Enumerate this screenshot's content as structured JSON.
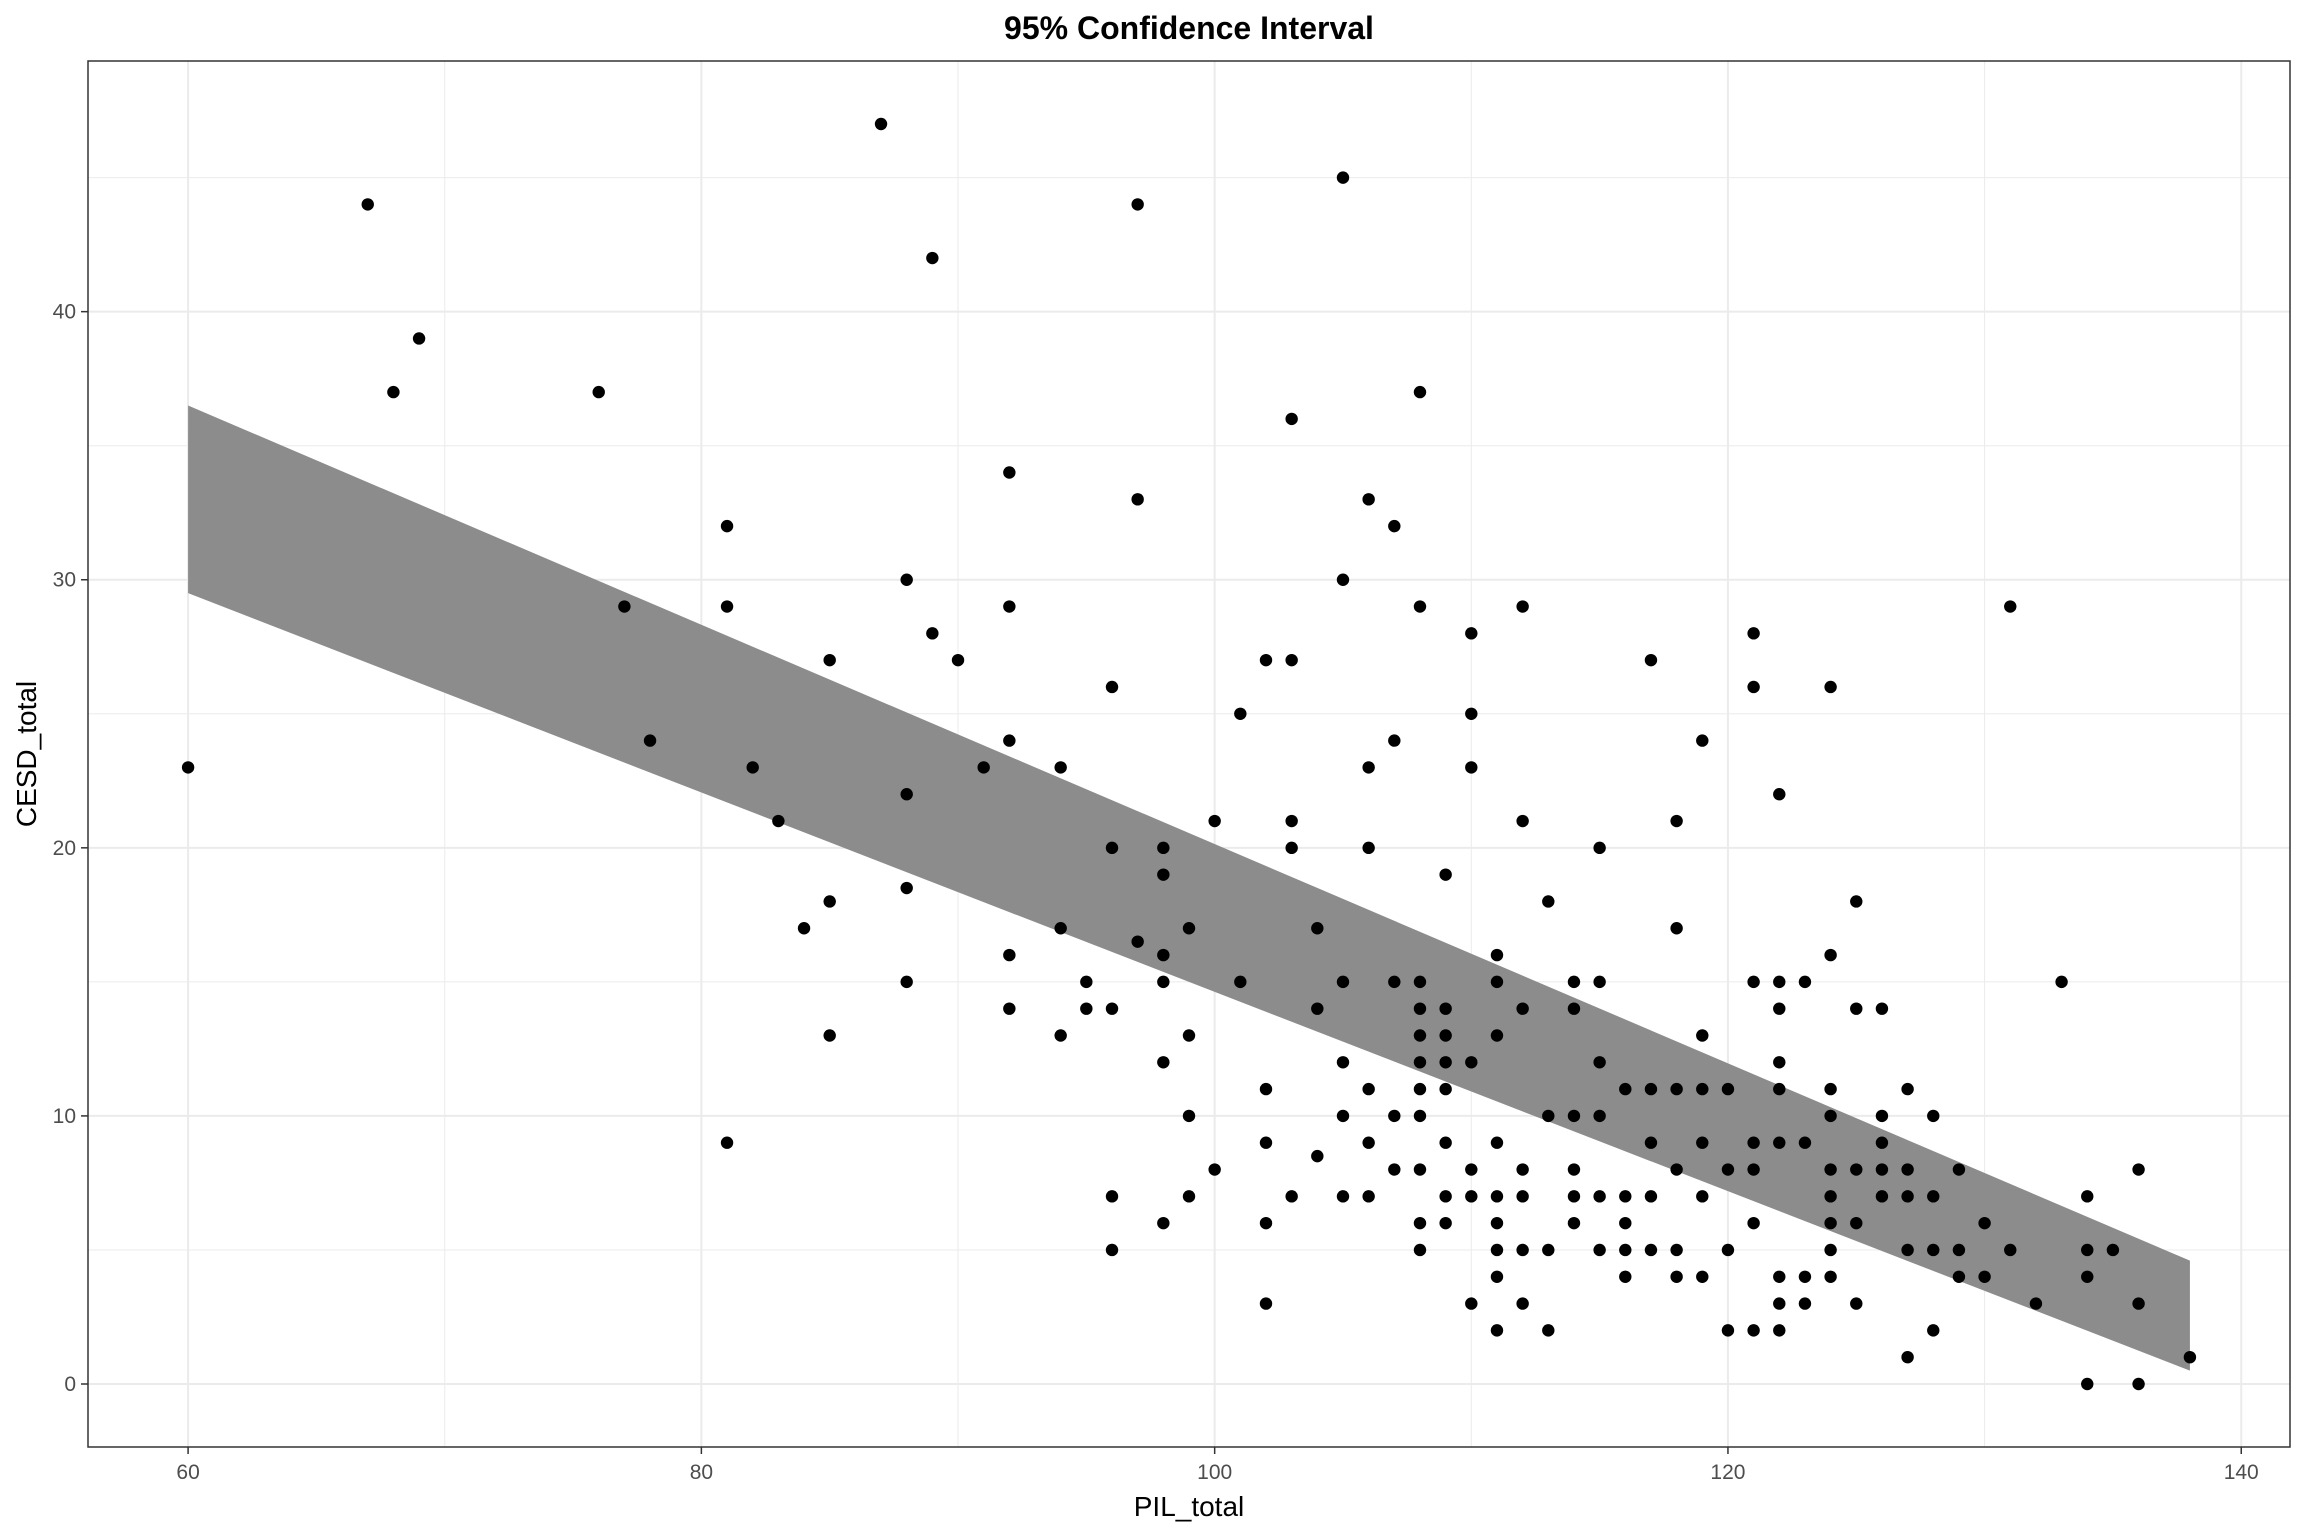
{
  "chart_data": {
    "type": "scatter",
    "title": "95% Confidence Interval",
    "xlabel": "PIL_total",
    "ylabel": "CESD_total",
    "xlim": [
      56.1,
      141.9
    ],
    "ylim": [
      -2.35,
      49.35
    ],
    "xticks": [
      60,
      80,
      100,
      120,
      140
    ],
    "yticks": [
      0,
      10,
      20,
      30,
      40
    ],
    "grid": true,
    "legend": "none",
    "colors": {
      "points": "#000000",
      "ribbon": "#8c8c8c",
      "grid": "#ebebeb",
      "border": "#333333"
    },
    "ribbon": {
      "x": [
        60,
        138
      ],
      "lower": [
        29.5,
        0.5
      ],
      "upper": [
        36.5,
        4.6
      ]
    },
    "points": [
      [
        60,
        23
      ],
      [
        67,
        44
      ],
      [
        68,
        37
      ],
      [
        69,
        39
      ],
      [
        76,
        37
      ],
      [
        77,
        29
      ],
      [
        78,
        24
      ],
      [
        81,
        32
      ],
      [
        81,
        29
      ],
      [
        81,
        9
      ],
      [
        82,
        23
      ],
      [
        83,
        21
      ],
      [
        84,
        17
      ],
      [
        85,
        27
      ],
      [
        85,
        18
      ],
      [
        85,
        13
      ],
      [
        87,
        47
      ],
      [
        88,
        30
      ],
      [
        88,
        22
      ],
      [
        88,
        18.5
      ],
      [
        88,
        15
      ],
      [
        89,
        42
      ],
      [
        89,
        28
      ],
      [
        90,
        27
      ],
      [
        91,
        23
      ],
      [
        92,
        34
      ],
      [
        92,
        29
      ],
      [
        92,
        24
      ],
      [
        92,
        16
      ],
      [
        92,
        14
      ],
      [
        94,
        23
      ],
      [
        94,
        17
      ],
      [
        94,
        13
      ],
      [
        95,
        15
      ],
      [
        95,
        14
      ],
      [
        96,
        26
      ],
      [
        96,
        20
      ],
      [
        96,
        14
      ],
      [
        96,
        7
      ],
      [
        96,
        5
      ],
      [
        97,
        44
      ],
      [
        97,
        33
      ],
      [
        97,
        16.5
      ],
      [
        98,
        20
      ],
      [
        98,
        19
      ],
      [
        98,
        16
      ],
      [
        98,
        15
      ],
      [
        98,
        12
      ],
      [
        98,
        6
      ],
      [
        99,
        17
      ],
      [
        99,
        13
      ],
      [
        99,
        10
      ],
      [
        99,
        7
      ],
      [
        100,
        21
      ],
      [
        100,
        8
      ],
      [
        101,
        25
      ],
      [
        101,
        15
      ],
      [
        102,
        27
      ],
      [
        102,
        11
      ],
      [
        102,
        9
      ],
      [
        102,
        6
      ],
      [
        102,
        3
      ],
      [
        103,
        36
      ],
      [
        103,
        27
      ],
      [
        103,
        21
      ],
      [
        103,
        20
      ],
      [
        103,
        7
      ],
      [
        104,
        17
      ],
      [
        104,
        14
      ],
      [
        104,
        8.5
      ],
      [
        105,
        45
      ],
      [
        105,
        30
      ],
      [
        105,
        15
      ],
      [
        105,
        12
      ],
      [
        105,
        10
      ],
      [
        105,
        7
      ],
      [
        106,
        33
      ],
      [
        106,
        23
      ],
      [
        106,
        20
      ],
      [
        106,
        11
      ],
      [
        106,
        9
      ],
      [
        106,
        7
      ],
      [
        107,
        32
      ],
      [
        107,
        24
      ],
      [
        107,
        15
      ],
      [
        107,
        10
      ],
      [
        107,
        8
      ],
      [
        108,
        37
      ],
      [
        108,
        29
      ],
      [
        108,
        15
      ],
      [
        108,
        14
      ],
      [
        108,
        13
      ],
      [
        108,
        12
      ],
      [
        108,
        11
      ],
      [
        108,
        10
      ],
      [
        108,
        8
      ],
      [
        108,
        6
      ],
      [
        108,
        5
      ],
      [
        109,
        19
      ],
      [
        109,
        14
      ],
      [
        109,
        13
      ],
      [
        109,
        12
      ],
      [
        109,
        11
      ],
      [
        109,
        9
      ],
      [
        109,
        7
      ],
      [
        109,
        6
      ],
      [
        110,
        28
      ],
      [
        110,
        25
      ],
      [
        110,
        23
      ],
      [
        110,
        12
      ],
      [
        110,
        8
      ],
      [
        110,
        7
      ],
      [
        110,
        3
      ],
      [
        111,
        16
      ],
      [
        111,
        15
      ],
      [
        111,
        13
      ],
      [
        111,
        9
      ],
      [
        111,
        7
      ],
      [
        111,
        6
      ],
      [
        111,
        5
      ],
      [
        111,
        4
      ],
      [
        111,
        2
      ],
      [
        112,
        29
      ],
      [
        112,
        21
      ],
      [
        112,
        14
      ],
      [
        112,
        8
      ],
      [
        112,
        7
      ],
      [
        112,
        5
      ],
      [
        112,
        3
      ],
      [
        113,
        18
      ],
      [
        113,
        10
      ],
      [
        113,
        5
      ],
      [
        113,
        2
      ],
      [
        114,
        15
      ],
      [
        114,
        14
      ],
      [
        114,
        10
      ],
      [
        114,
        8
      ],
      [
        114,
        7
      ],
      [
        114,
        6
      ],
      [
        115,
        20
      ],
      [
        115,
        15
      ],
      [
        115,
        12
      ],
      [
        115,
        10
      ],
      [
        115,
        7
      ],
      [
        115,
        5
      ],
      [
        116,
        11
      ],
      [
        116,
        7
      ],
      [
        116,
        6
      ],
      [
        116,
        5
      ],
      [
        116,
        4
      ],
      [
        117,
        27
      ],
      [
        117,
        11
      ],
      [
        117,
        9
      ],
      [
        117,
        7
      ],
      [
        117,
        5
      ],
      [
        118,
        21
      ],
      [
        118,
        17
      ],
      [
        118,
        11
      ],
      [
        118,
        8
      ],
      [
        118,
        5
      ],
      [
        118,
        4
      ],
      [
        119,
        24
      ],
      [
        119,
        13
      ],
      [
        119,
        11
      ],
      [
        119,
        9
      ],
      [
        119,
        7
      ],
      [
        119,
        4
      ],
      [
        120,
        11
      ],
      [
        120,
        8
      ],
      [
        120,
        5
      ],
      [
        120,
        2
      ],
      [
        121,
        28
      ],
      [
        121,
        26
      ],
      [
        121,
        15
      ],
      [
        121,
        9
      ],
      [
        121,
        8
      ],
      [
        121,
        6
      ],
      [
        121,
        2
      ],
      [
        122,
        22
      ],
      [
        122,
        15
      ],
      [
        122,
        14
      ],
      [
        122,
        12
      ],
      [
        122,
        11
      ],
      [
        122,
        9
      ],
      [
        122,
        4
      ],
      [
        122,
        3
      ],
      [
        122,
        2
      ],
      [
        123,
        15
      ],
      [
        123,
        9
      ],
      [
        123,
        4
      ],
      [
        123,
        3
      ],
      [
        124,
        26
      ],
      [
        124,
        16
      ],
      [
        124,
        11
      ],
      [
        124,
        10
      ],
      [
        124,
        8
      ],
      [
        124,
        7
      ],
      [
        124,
        6
      ],
      [
        124,
        5
      ],
      [
        124,
        4
      ],
      [
        125,
        18
      ],
      [
        125,
        14
      ],
      [
        125,
        8
      ],
      [
        125,
        6
      ],
      [
        125,
        3
      ],
      [
        126,
        14
      ],
      [
        126,
        10
      ],
      [
        126,
        9
      ],
      [
        126,
        8
      ],
      [
        126,
        7
      ],
      [
        127,
        11
      ],
      [
        127,
        8
      ],
      [
        127,
        7
      ],
      [
        127,
        5
      ],
      [
        127,
        1
      ],
      [
        128,
        10
      ],
      [
        128,
        7
      ],
      [
        128,
        5
      ],
      [
        128,
        2
      ],
      [
        129,
        8
      ],
      [
        129,
        5
      ],
      [
        129,
        4
      ],
      [
        130,
        6
      ],
      [
        130,
        4
      ],
      [
        131,
        29
      ],
      [
        131,
        5
      ],
      [
        132,
        3
      ],
      [
        133,
        15
      ],
      [
        134,
        7
      ],
      [
        134,
        5
      ],
      [
        134,
        4
      ],
      [
        134,
        0
      ],
      [
        135,
        5
      ],
      [
        136,
        8
      ],
      [
        136,
        3
      ],
      [
        136,
        0
      ],
      [
        138,
        1
      ]
    ]
  }
}
